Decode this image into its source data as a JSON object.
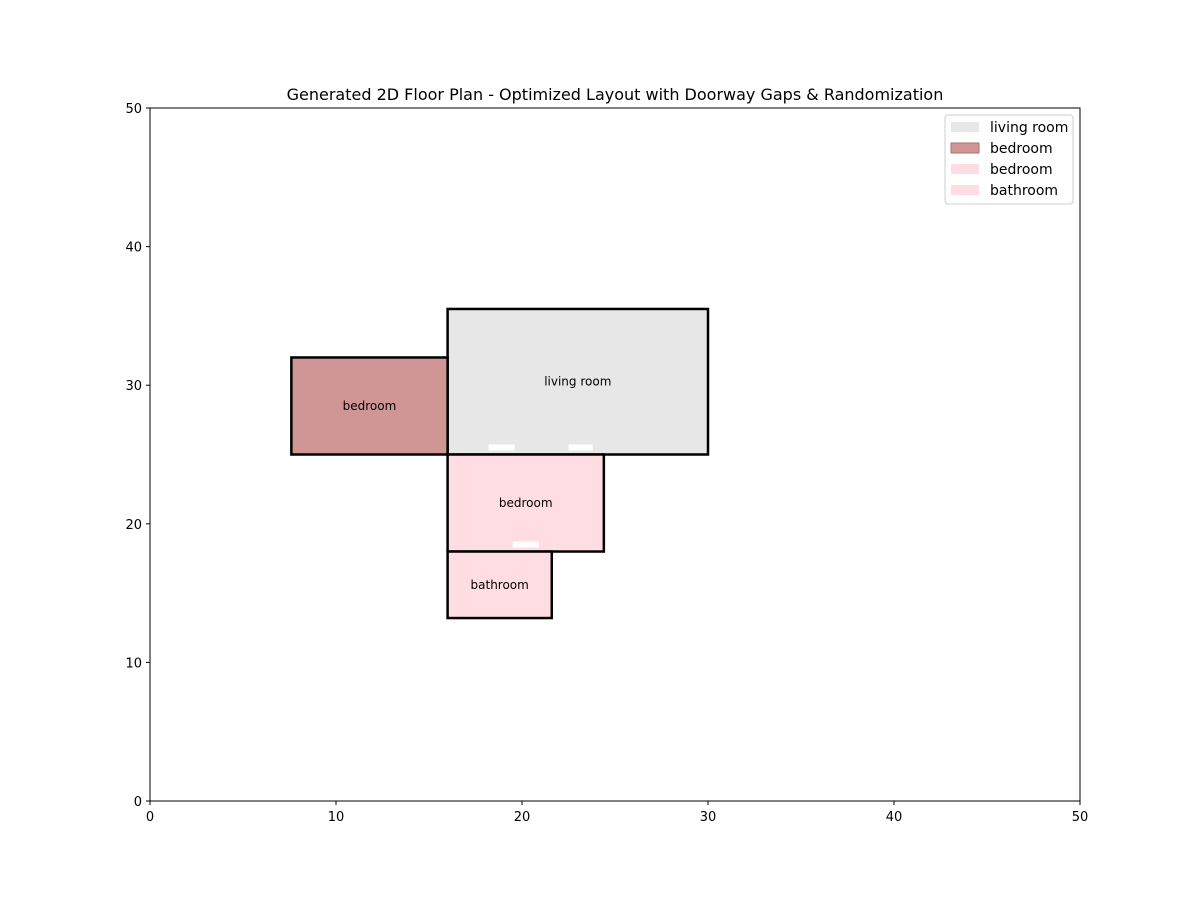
{
  "chart_data": {
    "type": "floor-plan",
    "title": "Generated 2D Floor Plan - Optimized Layout with Doorway Gaps & Randomization",
    "xlim": [
      0,
      50
    ],
    "ylim": [
      0,
      50
    ],
    "xticks": [
      "0",
      "10",
      "20",
      "30",
      "40",
      "50"
    ],
    "yticks": [
      "0",
      "10",
      "20",
      "30",
      "40",
      "50"
    ],
    "grid": false,
    "legend_position": "top-right",
    "rooms": [
      {
        "name": "living room",
        "x": 16.0,
        "y": 25.0,
        "width": 14.0,
        "height": 10.5,
        "color": "#e7e7e7"
      },
      {
        "name": "bedroom",
        "x": 7.6,
        "y": 25.0,
        "width": 8.4,
        "height": 7.0,
        "color": "#d09595"
      },
      {
        "name": "bedroom",
        "x": 16.0,
        "y": 18.0,
        "width": 8.4,
        "height": 7.0,
        "color": "#ffdde3"
      },
      {
        "name": "bathroom",
        "x": 16.0,
        "y": 13.2,
        "width": 5.6,
        "height": 4.8,
        "color": "#ffdde3"
      }
    ],
    "doorways": [
      {
        "x": 18.2,
        "y": 25.0,
        "width": 1.4
      },
      {
        "x": 22.5,
        "y": 25.0,
        "width": 1.3
      },
      {
        "x": 19.5,
        "y": 18.0,
        "width": 1.4
      }
    ]
  }
}
